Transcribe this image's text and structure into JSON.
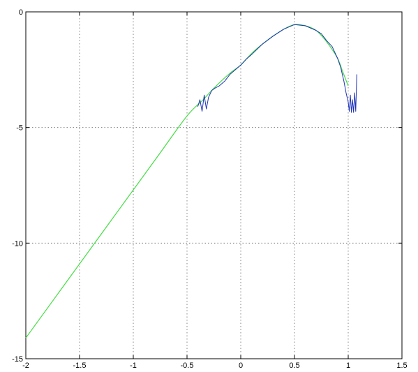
{
  "chart_data": {
    "type": "line",
    "title": "",
    "xlabel": "",
    "ylabel": "",
    "xlim": [
      -2,
      1.5
    ],
    "ylim": [
      -15,
      0
    ],
    "grid": true,
    "legend": "none",
    "x_ticks": [
      -2,
      -1.5,
      -1,
      -0.5,
      0,
      0.5,
      1,
      1.5
    ],
    "x_tick_labels": [
      "-2",
      "-1.5",
      "-1",
      "-0.5",
      "0",
      "0.5",
      "1",
      "1.5"
    ],
    "y_ticks": [
      -15,
      -10,
      -5,
      0
    ],
    "y_tick_labels": [
      "-15",
      "-10",
      "-5",
      "0"
    ],
    "series": [
      {
        "color": "#44dd44",
        "style": "smooth",
        "x": [
          -2.0,
          -1.75,
          -1.5,
          -1.25,
          -1.0,
          -0.75,
          -0.5,
          -0.35,
          -0.25,
          -0.1,
          0.0,
          0.1,
          0.2,
          0.3,
          0.4,
          0.5,
          0.6,
          0.7,
          0.8,
          0.9,
          0.95,
          1.0
        ],
        "y": [
          -14.1,
          -12.5,
          -10.9,
          -9.3,
          -7.7,
          -6.1,
          -4.5,
          -3.8,
          -3.3,
          -2.65,
          -2.3,
          -1.8,
          -1.4,
          -1.05,
          -0.75,
          -0.55,
          -0.6,
          -0.8,
          -1.3,
          -2.0,
          -2.6,
          -3.2
        ]
      },
      {
        "color": "#1f33b8",
        "style": "noisy",
        "x": [
          -0.4,
          -0.38,
          -0.36,
          -0.34,
          -0.32,
          -0.3,
          -0.27,
          -0.24,
          -0.2,
          -0.15,
          -0.1,
          -0.05,
          0.0,
          0.05,
          0.1,
          0.2,
          0.3,
          0.4,
          0.5,
          0.6,
          0.7,
          0.75,
          0.8,
          0.85,
          0.9,
          0.93,
          0.96,
          0.98,
          1.0,
          1.01,
          1.02,
          1.03,
          1.04,
          1.05,
          1.06,
          1.07,
          1.08
        ],
        "y": [
          -4.1,
          -3.8,
          -4.3,
          -3.6,
          -4.2,
          -3.7,
          -3.4,
          -3.3,
          -3.2,
          -3.0,
          -2.7,
          -2.5,
          -2.3,
          -2.05,
          -1.85,
          -1.4,
          -1.05,
          -0.75,
          -0.55,
          -0.6,
          -0.8,
          -0.95,
          -1.25,
          -1.5,
          -2.0,
          -2.4,
          -3.0,
          -3.5,
          -3.9,
          -4.3,
          -3.6,
          -4.35,
          -3.8,
          -4.35,
          -3.5,
          -4.3,
          -2.7
        ]
      }
    ]
  }
}
